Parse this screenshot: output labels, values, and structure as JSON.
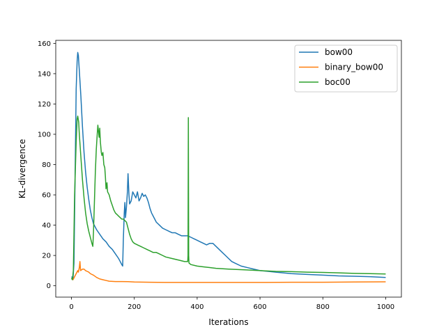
{
  "chart_data": {
    "type": "line",
    "title": "",
    "xlabel": "Iterations",
    "ylabel": "KL-divergence",
    "xlim": [
      -50,
      1050
    ],
    "ylim": [
      -7.5,
      162
    ],
    "xticks": [
      0,
      200,
      400,
      600,
      800,
      1000
    ],
    "yticks": [
      0,
      20,
      40,
      60,
      80,
      100,
      120,
      140,
      160
    ],
    "grid": false,
    "legend_position": "top-right",
    "series": [
      {
        "name": "bow00",
        "color": "#1f77b4",
        "points": [
          [
            0,
            6
          ],
          [
            5,
            5
          ],
          [
            8,
            15
          ],
          [
            12,
            80
          ],
          [
            15,
            130
          ],
          [
            18,
            148
          ],
          [
            20,
            154
          ],
          [
            22,
            152
          ],
          [
            25,
            142
          ],
          [
            30,
            125
          ],
          [
            35,
            105
          ],
          [
            40,
            88
          ],
          [
            45,
            75
          ],
          [
            50,
            65
          ],
          [
            55,
            57
          ],
          [
            60,
            50
          ],
          [
            65,
            45
          ],
          [
            70,
            41
          ],
          [
            80,
            37
          ],
          [
            90,
            34
          ],
          [
            100,
            31
          ],
          [
            110,
            29
          ],
          [
            120,
            26
          ],
          [
            130,
            24
          ],
          [
            140,
            21
          ],
          [
            150,
            18
          ],
          [
            155,
            16
          ],
          [
            160,
            14
          ],
          [
            163,
            13
          ],
          [
            165,
            30
          ],
          [
            168,
            48
          ],
          [
            170,
            55
          ],
          [
            172,
            45
          ],
          [
            175,
            52
          ],
          [
            178,
            62
          ],
          [
            180,
            74
          ],
          [
            183,
            60
          ],
          [
            185,
            54
          ],
          [
            190,
            56
          ],
          [
            195,
            62
          ],
          [
            200,
            60
          ],
          [
            205,
            58
          ],
          [
            210,
            62
          ],
          [
            215,
            56
          ],
          [
            220,
            58
          ],
          [
            225,
            61
          ],
          [
            230,
            59
          ],
          [
            235,
            60
          ],
          [
            240,
            58
          ],
          [
            245,
            55
          ],
          [
            250,
            51
          ],
          [
            255,
            48
          ],
          [
            260,
            46
          ],
          [
            270,
            42
          ],
          [
            280,
            40
          ],
          [
            290,
            38
          ],
          [
            300,
            37
          ],
          [
            310,
            36
          ],
          [
            320,
            35
          ],
          [
            330,
            35
          ],
          [
            340,
            34
          ],
          [
            350,
            33
          ],
          [
            360,
            33
          ],
          [
            370,
            33
          ],
          [
            380,
            32
          ],
          [
            390,
            31
          ],
          [
            400,
            30
          ],
          [
            410,
            29
          ],
          [
            420,
            28
          ],
          [
            430,
            27
          ],
          [
            440,
            28
          ],
          [
            450,
            28
          ],
          [
            460,
            26
          ],
          [
            470,
            24
          ],
          [
            480,
            22
          ],
          [
            490,
            20
          ],
          [
            500,
            18
          ],
          [
            510,
            16
          ],
          [
            520,
            15
          ],
          [
            540,
            13
          ],
          [
            560,
            12
          ],
          [
            580,
            11
          ],
          [
            600,
            10
          ],
          [
            650,
            9
          ],
          [
            700,
            8
          ],
          [
            750,
            7.5
          ],
          [
            800,
            7
          ],
          [
            850,
            6.5
          ],
          [
            900,
            6.3
          ],
          [
            950,
            6
          ],
          [
            1000,
            5.5
          ]
        ]
      },
      {
        "name": "binary_bow00",
        "color": "#ff7f0e",
        "points": [
          [
            0,
            5
          ],
          [
            5,
            4
          ],
          [
            10,
            6
          ],
          [
            15,
            8
          ],
          [
            20,
            10
          ],
          [
            22,
            9
          ],
          [
            25,
            12
          ],
          [
            27,
            16
          ],
          [
            29,
            10
          ],
          [
            35,
            11
          ],
          [
            40,
            11
          ],
          [
            45,
            10
          ],
          [
            50,
            9.5
          ],
          [
            55,
            9
          ],
          [
            60,
            8
          ],
          [
            70,
            7
          ],
          [
            80,
            5.5
          ],
          [
            90,
            4.5
          ],
          [
            100,
            4
          ],
          [
            110,
            3.5
          ],
          [
            120,
            3
          ],
          [
            140,
            2.8
          ],
          [
            160,
            2.8
          ],
          [
            180,
            2.7
          ],
          [
            200,
            2.5
          ],
          [
            250,
            2.3
          ],
          [
            300,
            2.2
          ],
          [
            350,
            2.2
          ],
          [
            400,
            2.2
          ],
          [
            500,
            2.2
          ],
          [
            600,
            2.2
          ],
          [
            700,
            2.3
          ],
          [
            800,
            2.3
          ],
          [
            900,
            2.5
          ],
          [
            1000,
            2.6
          ]
        ]
      },
      {
        "name": "boc00",
        "color": "#2ca02c",
        "points": [
          [
            0,
            5
          ],
          [
            3,
            4
          ],
          [
            6,
            10
          ],
          [
            10,
            60
          ],
          [
            15,
            95
          ],
          [
            18,
            110
          ],
          [
            20,
            112
          ],
          [
            23,
            108
          ],
          [
            25,
            100
          ],
          [
            30,
            85
          ],
          [
            35,
            70
          ],
          [
            40,
            58
          ],
          [
            45,
            48
          ],
          [
            50,
            41
          ],
          [
            55,
            36
          ],
          [
            60,
            32
          ],
          [
            65,
            28
          ],
          [
            68,
            26
          ],
          [
            70,
            35
          ],
          [
            73,
            55
          ],
          [
            76,
            75
          ],
          [
            79,
            90
          ],
          [
            82,
            100
          ],
          [
            84,
            106
          ],
          [
            86,
            102
          ],
          [
            88,
            98
          ],
          [
            90,
            104
          ],
          [
            92,
            95
          ],
          [
            95,
            88
          ],
          [
            97,
            86
          ],
          [
            100,
            88
          ],
          [
            103,
            80
          ],
          [
            106,
            78
          ],
          [
            108,
            72
          ],
          [
            110,
            64
          ],
          [
            113,
            68
          ],
          [
            115,
            62
          ],
          [
            120,
            60
          ],
          [
            125,
            56
          ],
          [
            130,
            53
          ],
          [
            135,
            50
          ],
          [
            140,
            48
          ],
          [
            145,
            47
          ],
          [
            150,
            46
          ],
          [
            155,
            45
          ],
          [
            160,
            44
          ],
          [
            165,
            44
          ],
          [
            170,
            43
          ],
          [
            175,
            42
          ],
          [
            180,
            38
          ],
          [
            185,
            34
          ],
          [
            190,
            31
          ],
          [
            195,
            29
          ],
          [
            200,
            28
          ],
          [
            210,
            27
          ],
          [
            220,
            26
          ],
          [
            230,
            25
          ],
          [
            240,
            24
          ],
          [
            250,
            23
          ],
          [
            260,
            22
          ],
          [
            270,
            22
          ],
          [
            280,
            21
          ],
          [
            290,
            20
          ],
          [
            300,
            19
          ],
          [
            320,
            18
          ],
          [
            340,
            17
          ],
          [
            360,
            16
          ],
          [
            370,
            16
          ],
          [
            371,
            20
          ],
          [
            372,
            111
          ],
          [
            373,
            20
          ],
          [
            374,
            15
          ],
          [
            380,
            14
          ],
          [
            400,
            13
          ],
          [
            420,
            12.5
          ],
          [
            440,
            12
          ],
          [
            460,
            11.5
          ],
          [
            500,
            11
          ],
          [
            550,
            10.5
          ],
          [
            600,
            10
          ],
          [
            650,
            9.5
          ],
          [
            700,
            9.3
          ],
          [
            750,
            9
          ],
          [
            800,
            8.8
          ],
          [
            850,
            8.5
          ],
          [
            900,
            8.2
          ],
          [
            950,
            8
          ],
          [
            1000,
            7.8
          ]
        ]
      }
    ]
  }
}
